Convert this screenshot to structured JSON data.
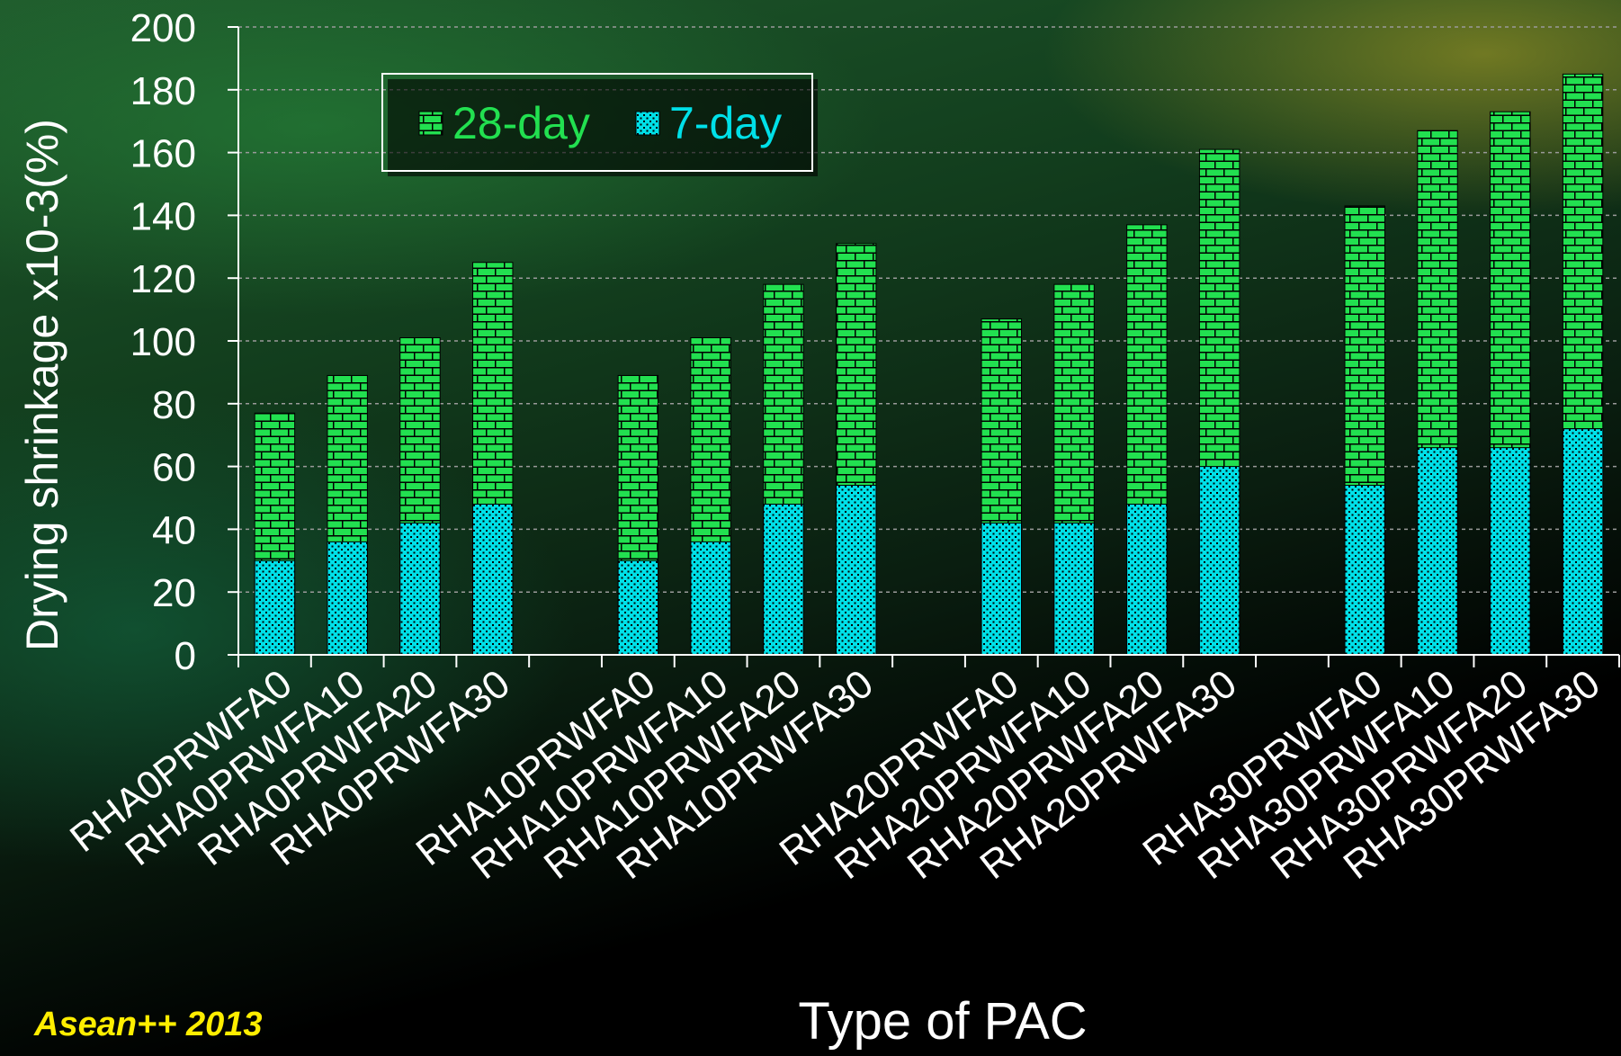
{
  "chart_data": {
    "type": "bar",
    "stacked": true,
    "ylabel": "Drying shrinkage x10-3(%)",
    "xlabel": "Type of PAC",
    "ylim": [
      0,
      200
    ],
    "yticks": [
      0,
      20,
      40,
      60,
      80,
      100,
      120,
      140,
      160,
      180,
      200
    ],
    "grid": true,
    "legend_position": "top-left",
    "groups": [
      [
        "RHA0PRWFA0",
        "RHA0PRWFA10",
        "RHA0PRWFA20",
        "RHA0PRWFA30"
      ],
      [
        "RHA10PRWFA0",
        "RHA10PRWFA10",
        "RHA10PRWFA20",
        "RHA10PRWFA30"
      ],
      [
        "RHA20PRWFA0",
        "RHA20PRWFA10",
        "RHA20PRWFA20",
        "RHA20PRWFA30"
      ],
      [
        "RHA30PRWFA0",
        "RHA30PRWFA10",
        "RHA30PRWFA20",
        "RHA30PRWFA30"
      ]
    ],
    "series": [
      {
        "name": "28-day",
        "color": "#22e050",
        "values": [
          [
            77,
            89,
            101,
            125
          ],
          [
            89,
            101,
            118,
            131
          ],
          [
            107,
            118,
            137,
            161
          ],
          [
            143,
            167,
            173,
            185
          ]
        ]
      },
      {
        "name": "7-day",
        "color": "#00e0e8",
        "values": [
          [
            30,
            36,
            42,
            48
          ],
          [
            30,
            36,
            48,
            54
          ],
          [
            42,
            42,
            48,
            60
          ],
          [
            54,
            66,
            66,
            72
          ]
        ]
      }
    ]
  },
  "footer": {
    "tag": "Asean++ 2013"
  }
}
